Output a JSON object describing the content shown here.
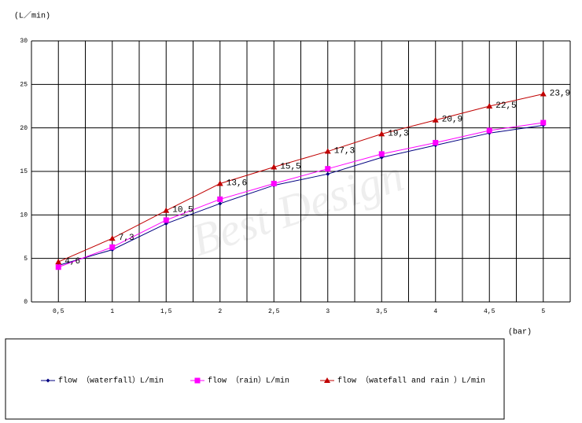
{
  "chart_data": {
    "type": "line",
    "y_unit_label": "(L／min)",
    "x_unit_label": "(bar)",
    "watermark": "Best Design",
    "x": [
      0.5,
      1,
      1.5,
      2,
      2.5,
      3,
      3.5,
      4,
      4.5,
      5
    ],
    "xlim": [
      0.25,
      5.25
    ],
    "xticks": [
      {
        "value": 0.5,
        "label": "0,5"
      },
      1,
      {
        "value": 1.5,
        "label": "1,5"
      },
      2,
      {
        "value": 2.5,
        "label": "2,5"
      },
      3,
      {
        "value": 3.5,
        "label": "3,5"
      },
      4,
      {
        "value": 4.5,
        "label": "4,5"
      },
      5
    ],
    "ylim": [
      0,
      30
    ],
    "yticks": [
      0,
      5,
      10,
      15,
      20,
      25,
      30
    ],
    "grid": true,
    "series": [
      {
        "name": "flow （waterfall）L/min",
        "color": "#000080",
        "marker": "diamond",
        "values": [
          4.2,
          6.0,
          9.0,
          11.3,
          13.4,
          14.7,
          16.6,
          18.0,
          19.4,
          20.3
        ]
      },
      {
        "name": "flow （rain）L/min",
        "color": "#ff00ff",
        "marker": "square",
        "values": [
          4.0,
          6.3,
          9.4,
          11.8,
          13.6,
          15.3,
          17.0,
          18.3,
          19.7,
          20.6
        ]
      },
      {
        "name": "flow （watefall and rain ）L/min",
        "color": "#c00000",
        "marker": "triangle",
        "values": [
          4.6,
          7.3,
          10.5,
          13.6,
          15.5,
          17.3,
          19.3,
          20.9,
          22.5,
          23.9
        ],
        "value_labels": [
          "4,6",
          "7,3",
          "10,5",
          "13,6",
          "15,5",
          "17,3",
          "19,3",
          "20,9",
          "22,5",
          "23,9"
        ]
      }
    ]
  }
}
